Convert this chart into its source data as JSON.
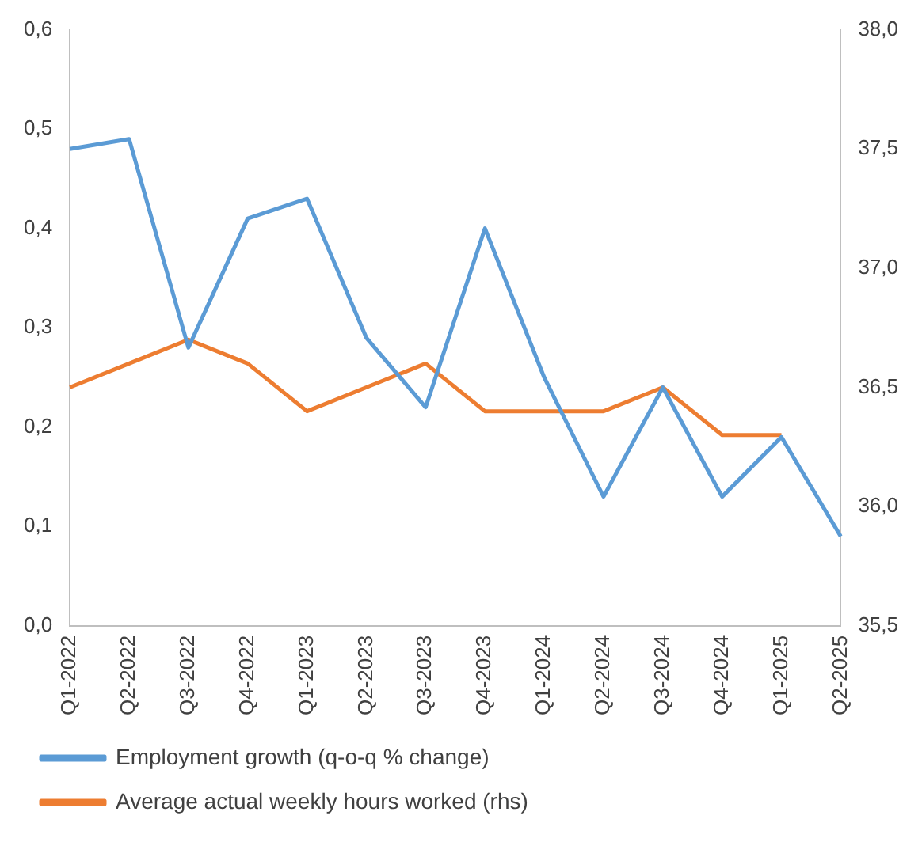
{
  "chart_data": {
    "type": "line",
    "categories": [
      "Q1-2022",
      "Q2-2022",
      "Q3-2022",
      "Q4-2022",
      "Q1-2023",
      "Q2-2023",
      "Q3-2023",
      "Q4-2023",
      "Q1-2024",
      "Q2-2024",
      "Q3-2024",
      "Q4-2024",
      "Q1-2025",
      "Q2-2025"
    ],
    "series": [
      {
        "name": "Employment growth (q-o-q % change)",
        "color": "#5b9bd5",
        "values": [
          0.48,
          0.49,
          0.28,
          0.41,
          0.43,
          0.29,
          0.22,
          0.4,
          0.25,
          0.13,
          0.24,
          0.13,
          0.19,
          0.09
        ]
      },
      {
        "name": "Average actual weekly hours worked (rhs)",
        "color": "#ed7d31",
        "axis": "y2",
        "values": [
          36.5,
          36.6,
          36.7,
          36.6,
          36.4,
          36.5,
          36.6,
          36.4,
          36.4,
          36.4,
          36.5,
          36.3,
          36.3,
          null
        ]
      }
    ],
    "ylim": [
      0,
      0.6
    ],
    "yticks": [
      {
        "value": 0,
        "label": "0,0"
      },
      {
        "value": 0.1,
        "label": "0,1"
      },
      {
        "value": 0.2,
        "label": "0,2"
      },
      {
        "value": 0.3,
        "label": "0,3"
      },
      {
        "value": 0.4,
        "label": "0,4"
      },
      {
        "value": 0.5,
        "label": "0,5"
      },
      {
        "value": 0.6,
        "label": "0,6"
      }
    ],
    "y2lim": [
      35.5,
      38
    ],
    "y2ticks": [
      {
        "value": 35.5,
        "label": "35,5"
      },
      {
        "value": 36,
        "label": "36,0"
      },
      {
        "value": 36.5,
        "label": "36,5"
      },
      {
        "value": 37,
        "label": "37,0"
      },
      {
        "value": 37.5,
        "label": "37,5"
      },
      {
        "value": 38,
        "label": "38,0"
      }
    ],
    "grid": false,
    "legend": "bottom",
    "marker": "none",
    "line_style": "solid"
  }
}
